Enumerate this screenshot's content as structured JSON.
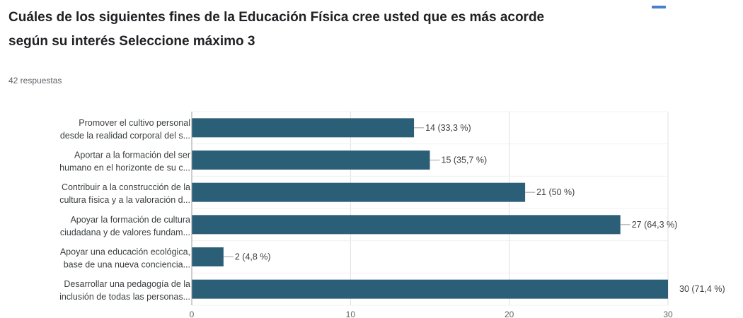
{
  "title_line1": "Cuáles de los siguientes fines de la Educación Física cree usted que es más acorde",
  "title_line2": "según su interés Seleccione máximo 3",
  "responses": "42 respuestas",
  "icons": {
    "copy": "copy-icon"
  },
  "colors": {
    "bar": "#2b5f78",
    "grid": "#e0e0e0",
    "axis": "#9e9e9e",
    "accent": "#4a80c5"
  },
  "chart_data": {
    "type": "bar",
    "orientation": "horizontal",
    "title": "Cuáles de los siguientes fines de la Educación Física cree usted que es más acorde según su interés Seleccione máximo 3",
    "categories": [
      [
        "Promover el cultivo personal",
        "desde la realidad corporal del s..."
      ],
      [
        "Aportar a la formación del ser",
        "humano en el horizonte de su c..."
      ],
      [
        "Contribuir a la construcción de la",
        "cultura física y a la valoración d..."
      ],
      [
        "Apoyar la formación de cultura",
        "ciudadana y de valores fundam..."
      ],
      [
        "Apoyar una educación ecológica,",
        "base de una nueva conciencia..."
      ],
      [
        "Desarrollar una pedagogía de la",
        "inclusión de todas las personas..."
      ]
    ],
    "values": [
      14,
      15,
      21,
      27,
      2,
      30
    ],
    "value_labels": [
      "14 (33,3 %)",
      "15 (35,7 %)",
      "21 (50 %)",
      "27 (64,3 %)",
      "2 (4,8 %)",
      "30 (71,4 %)"
    ],
    "xlim": [
      0,
      30
    ],
    "xticks": [
      0,
      10,
      20,
      30
    ],
    "grid": true,
    "legend": "none"
  }
}
